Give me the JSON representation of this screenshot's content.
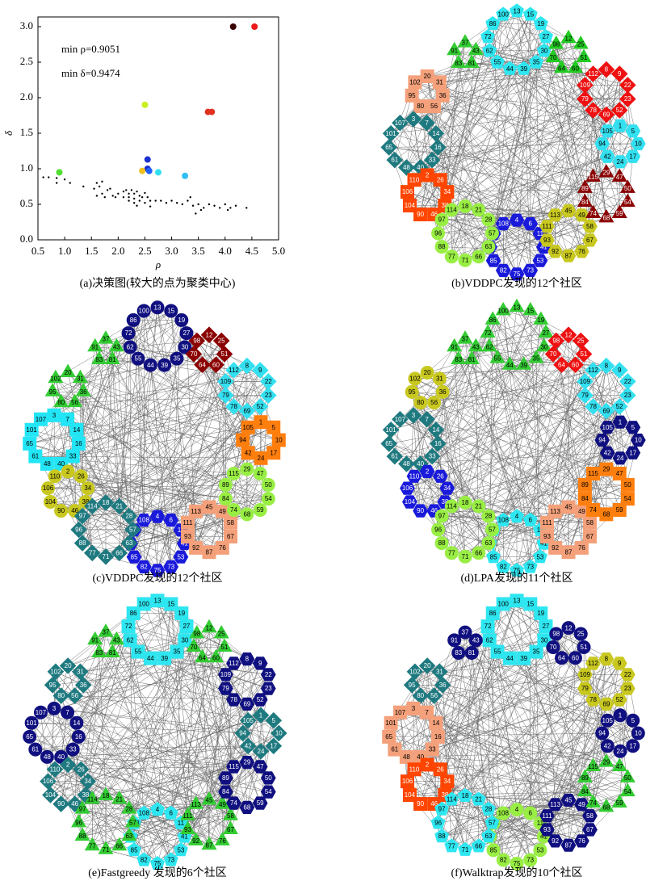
{
  "chart_data": {
    "type": "scatter",
    "caption": "(a)决策图(较大的点为聚类中心)",
    "xlabel": "ρ",
    "ylabel": "δ",
    "annotations": [
      "min ρ=0.9051",
      "min δ=0.9474"
    ],
    "xlim": [
      0.5,
      5.0
    ],
    "ylim": [
      0.0,
      3.0
    ],
    "xticks": [
      0.5,
      {
        "value": 1,
        "label": "1.0"
      },
      1.5,
      {
        "value": 2,
        "label": "2.0"
      },
      2.5,
      {
        "value": 3,
        "label": "3.0"
      },
      3.5,
      {
        "value": 4,
        "label": "4.0"
      },
      4.5,
      {
        "value": 5,
        "label": "5.0"
      }
    ],
    "yticks": [
      {
        "value": 0,
        "label": "0.0"
      },
      0.5,
      {
        "value": 1,
        "label": "1.0"
      },
      1.5,
      {
        "value": 2,
        "label": "2.0"
      },
      2.5,
      {
        "value": 3,
        "label": "3.0"
      }
    ],
    "series": [
      {
        "color": "#000000",
        "x": [
          0.6,
          0.7,
          0.85,
          0.85,
          1.0,
          1.1,
          1.35,
          1.55,
          1.6,
          1.65,
          1.7,
          1.7,
          1.8,
          1.85,
          1.6,
          1.75,
          1.9,
          2.1,
          2.15,
          2.2,
          2.2,
          2.25,
          2.3,
          2.3,
          2.35,
          2.4,
          2.4,
          2.45,
          2.5,
          2.55,
          2.6,
          2.2,
          2.3,
          2.5,
          2.6,
          2.7,
          2.8,
          2.9,
          3.0,
          3.1,
          3.2,
          3.3,
          3.35,
          3.4,
          3.5,
          3.55,
          3.6,
          3.7,
          3.8,
          3.9,
          4.0,
          4.05,
          4.1,
          4.2,
          4.4,
          3.45,
          2.1,
          2.0,
          1.95,
          2.35
        ],
        "values": [
          0.88,
          0.88,
          0.87,
          0.8,
          0.85,
          0.8,
          0.75,
          0.72,
          0.8,
          0.75,
          0.82,
          0.65,
          0.7,
          0.72,
          0.62,
          0.6,
          0.62,
          0.68,
          0.7,
          0.65,
          0.6,
          0.7,
          0.65,
          0.58,
          0.68,
          0.62,
          0.55,
          0.6,
          0.66,
          0.6,
          0.55,
          0.55,
          0.52,
          0.52,
          0.47,
          0.55,
          0.55,
          0.52,
          0.55,
          0.52,
          0.5,
          0.55,
          0.6,
          0.48,
          0.5,
          0.42,
          0.45,
          0.5,
          0.48,
          0.45,
          0.5,
          0.42,
          0.45,
          0.48,
          0.45,
          0.37,
          0.6,
          0.65,
          0.6,
          0.48
        ]
      },
      {
        "colors": [
          "#3a0000",
          "#ee1a1a",
          "#c8f020",
          "#e03020",
          "#e03020",
          "#1a2fd0",
          "#1a2fd0",
          "#2060ff",
          "#f0c020",
          "#30e0f0",
          "#30c0f0",
          "#50e030"
        ],
        "x": [
          4.15,
          4.55,
          2.5,
          3.68,
          3.75,
          2.55,
          2.55,
          2.58,
          2.45,
          2.75,
          3.25,
          0.9
        ],
        "values": [
          3.0,
          3.0,
          1.9,
          1.8,
          1.8,
          1.13,
          1.0,
          0.97,
          0.97,
          0.95,
          0.9,
          0.95
        ]
      }
    ]
  },
  "network": {
    "clusters": [
      {
        "nodes": [
          13,
          15,
          19,
          27,
          30,
          35,
          39,
          44,
          55,
          62,
          72,
          86,
          100
        ]
      },
      {
        "nodes": [
          37,
          43,
          81,
          83,
          91
        ]
      },
      {
        "nodes": [
          20,
          31,
          36,
          56,
          80,
          95,
          102
        ]
      },
      {
        "nodes": [
          3,
          7,
          14,
          16,
          33,
          40,
          48,
          61,
          65,
          101,
          107
        ]
      },
      {
        "nodes": [
          2,
          26,
          34,
          38,
          46,
          90,
          104,
          106,
          110
        ]
      },
      {
        "nodes": [
          4,
          6,
          11,
          41,
          53,
          73,
          75,
          82,
          85,
          99,
          103,
          108
        ]
      },
      {
        "nodes": [
          18,
          21,
          28,
          57,
          63,
          66,
          71,
          77,
          88,
          96,
          97,
          114
        ]
      },
      {
        "nodes": [
          45,
          49,
          58,
          67,
          76,
          87,
          92,
          93,
          111,
          113
        ]
      },
      {
        "nodes": [
          29,
          47,
          50,
          54,
          59,
          68,
          74,
          84,
          89,
          115
        ]
      },
      {
        "nodes": [
          1,
          5,
          10,
          17,
          24,
          42,
          94,
          105
        ]
      },
      {
        "nodes": [
          8,
          9,
          22,
          23,
          52,
          69,
          78,
          79,
          109,
          112
        ]
      },
      {
        "nodes": [
          12,
          25,
          51,
          60,
          64,
          70,
          98
        ]
      }
    ],
    "panels": [
      {
        "caption": "(b)VDDPC发现的12个社区",
        "colors": [
          "#2ee6f0",
          "#33cc33",
          "#f4a07a",
          "#1f7a80",
          "#ff4500",
          "#1a1adb",
          "#99ee44",
          "#c8c820",
          "#8b0000",
          "#33e0f0",
          "#ee1111",
          "#22cc22"
        ],
        "shapes": [
          "pentagon",
          "triangle",
          "square",
          "diamond",
          "square",
          "hexagon",
          "circle",
          "hexagon",
          "triangle",
          "hexagon",
          "diamond",
          "triangle"
        ]
      },
      {
        "caption": "(c)VDDPC发现的12个社区",
        "colors": [
          "#101080",
          "#33cc33",
          "#33cc33",
          "#22e5f5",
          "#c8c820",
          "#1a1adb",
          "#1f7a80",
          "#f4a07a",
          "#99ee44",
          "#ff7f0e",
          "#33e0f0",
          "#8b0000"
        ],
        "shapes": [
          "circle",
          "triangle",
          "triangle",
          "square",
          "circle",
          "hexagon",
          "diamond",
          "square",
          "circle",
          "square",
          "diamond",
          "diamond"
        ]
      },
      {
        "caption": "(d)LPA发现的11个社区",
        "colors": [
          "#33cc33",
          "#33cc33",
          "#c8c820",
          "#1f7a80",
          "#1a1adb",
          "#2ee6f0",
          "#99ee44",
          "#f4a07a",
          "#ff7f0e",
          "#101080",
          "#33e0f0",
          "#ee1111"
        ],
        "shapes": [
          "triangle",
          "triangle",
          "circle",
          "diamond",
          "hexagon",
          "pentagon",
          "circle",
          "square",
          "square",
          "hexagon",
          "diamond",
          "diamond"
        ]
      },
      {
        "caption": "(e)Fastgreedy 发现的6个社区",
        "colors": [
          "#2ee6f0",
          "#33cc33",
          "#1f7a80",
          "#101080",
          "#1f7a80",
          "#2ee6f0",
          "#33cc33",
          "#33cc33",
          "#101080",
          "#1f7a80",
          "#101080",
          "#33cc33"
        ],
        "shapes": [
          "square",
          "triangle",
          "diamond",
          "circle",
          "diamond",
          "pentagon",
          "triangle",
          "triangle",
          "hexagon",
          "diamond",
          "hexagon",
          "triangle"
        ]
      },
      {
        "caption": "(f)Walktrap发现的10个社区",
        "colors": [
          "#2ee6f0",
          "#101080",
          "#1f7a80",
          "#f4a07a",
          "#ff4500",
          "#99ee44",
          "#2ee6f0",
          "#101080",
          "#33cc33",
          "#101080",
          "#c8c820",
          "#101080"
        ],
        "shapes": [
          "square",
          "circle",
          "diamond",
          "square",
          "square",
          "circle",
          "pentagon",
          "hexagon",
          "triangle",
          "circle",
          "hexagon",
          "circle"
        ]
      }
    ]
  }
}
